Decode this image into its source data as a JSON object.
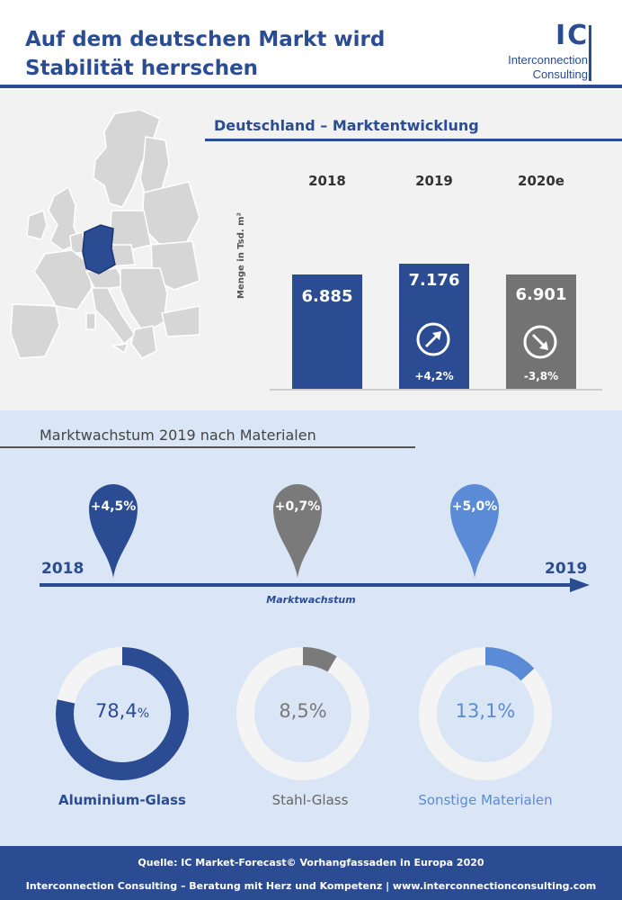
{
  "header": {
    "title": "Auf dem deutschen Markt wird Stabilität herrschen",
    "logo_short": "IC",
    "logo_line1": "Interconnection",
    "logo_line2": "Consulting"
  },
  "germany": {
    "heading": "Deutschland – Marktentwicklung",
    "yaxis_label": "Menge in Tsd. m²",
    "bars": [
      {
        "year": "2018",
        "value": "6.885",
        "change": "",
        "color": "#2b4c93"
      },
      {
        "year": "2019",
        "value": "7.176",
        "change": "+4,2%",
        "color": "#2b4c93"
      },
      {
        "year": "2020e",
        "value": "6.901",
        "change": "-3,8%",
        "color": "#737373"
      }
    ]
  },
  "growth": {
    "heading": "Marktwachstum 2019 nach Materialen",
    "start_year": "2018",
    "end_year": "2019",
    "axis_caption": "Marktwachstum",
    "pins": [
      {
        "label": "+4,5%",
        "color": "#2b4c93"
      },
      {
        "label": "+0,7%",
        "color": "#7a7a7a"
      },
      {
        "label": "+5,0%",
        "color": "#5b8bd6"
      }
    ],
    "shares": [
      {
        "name": "Aluminium-Glass",
        "value": "78,4",
        "unit": "%",
        "fraction": 0.784,
        "color": "#2b4c93"
      },
      {
        "name": "Stahl-Glass",
        "value": "8,5%",
        "unit": "",
        "fraction": 0.085,
        "color": "#7a7a7a"
      },
      {
        "name": "Sonstige Materialen",
        "value": "13,1%",
        "unit": "",
        "fraction": 0.131,
        "color": "#5b8bd6"
      }
    ]
  },
  "footer": {
    "source": "Quelle: IC Market-Forecast© Vorhangfassaden in Europa 2020",
    "tagline": "Interconnection Consulting – Beratung mit Herz und Kompetenz | www.interconnectionconsulting.com"
  }
}
